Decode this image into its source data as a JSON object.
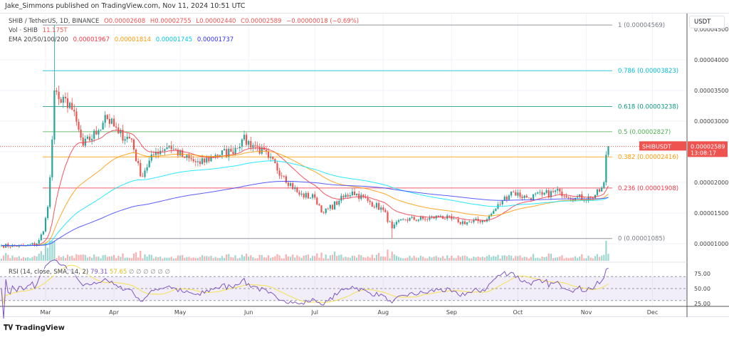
{
  "header": {
    "published": "Jake_Simmons published on TradingView.com, Nov 11, 2024 10:51 UTC"
  },
  "legend": {
    "symbol": "SHIB / TetherUS, 1D, BINANCE",
    "o": "O0.00002608",
    "h": "H0.00002755",
    "l": "L0.00002440",
    "c": "C0.00002589",
    "chg": "−0.00000018 (−0.69%)",
    "vol_label": "Vol · SHIB",
    "vol_value": "11.175T",
    "ema_label": "EMA 20/50/100/200",
    "ema20": "0.00001967",
    "ema50": "0.00001814",
    "ema100": "0.00001745",
    "ema200": "0.00001737"
  },
  "rsi_legend": {
    "label": "RSI (14, close, SMA, 14, 2)",
    "rsi": "79.31",
    "sma": "57.65",
    "placeholders": "∅ ∅ ∅ ∅ ∅ ∅"
  },
  "price_axis": {
    "currency": "USDT",
    "ticks": [
      "0.00004500",
      "0.00004000",
      "0.00003500",
      "0.00003000",
      "0.00002000",
      "0.00001500",
      "0.00001000"
    ]
  },
  "last_price": {
    "symbol": "SHIBUSDT",
    "price": "0.00002589",
    "countdown": "13:08:17"
  },
  "rsi_axis": {
    "ticks": [
      "75.00",
      "50.00",
      "25.00"
    ]
  },
  "time_axis": {
    "months": [
      "Mar",
      "Apr",
      "May",
      "Jun",
      "Jul",
      "Aug",
      "Sep",
      "Oct",
      "Nov",
      "Dec"
    ]
  },
  "fib_levels": [
    {
      "label": "1 (0.00004569)",
      "price": 4.569e-05,
      "color": "#787b86"
    },
    {
      "label": "0.786 (0.00003823)",
      "price": 3.823e-05,
      "color": "#00bcd4"
    },
    {
      "label": "0.618 (0.00003238)",
      "price": 3.238e-05,
      "color": "#089981"
    },
    {
      "label": "0.5 (0.00002827)",
      "price": 2.827e-05,
      "color": "#4caf50"
    },
    {
      "label": "0.382 (0.00002416)",
      "price": 2.416e-05,
      "color": "#ff9800"
    },
    {
      "label": "0.236 (0.00001908)",
      "price": 1.908e-05,
      "color": "#f23645"
    },
    {
      "label": "0 (0.00001085)",
      "price": 1.085e-05,
      "color": "#787b86"
    }
  ],
  "colors": {
    "up": "#26a69a",
    "down": "#ef5350",
    "ema20": "#f23645",
    "ema50": "#ff9800",
    "ema100": "#00e5ff",
    "ema200": "#3f3fff",
    "rsi": "#7e57c2",
    "rsi_sma": "#f5e050"
  },
  "chart_data": {
    "type": "candlestick",
    "title": "SHIB / TetherUS, 1D, BINANCE",
    "price_unit": "USDT",
    "ylim": [
      8.5e-06,
      4.57e-05
    ],
    "approx_closes": [
      [
        "2024-02-10",
        9.7e-06
      ],
      [
        "2024-02-20",
        9.6e-06
      ],
      [
        "2024-02-26",
        1e-05
      ],
      [
        "2024-02-29",
        1.2e-05
      ],
      [
        "2024-03-02",
        1.6e-05
      ],
      [
        "2024-03-04",
        2.7e-05
      ],
      [
        "2024-03-05",
        3.5e-05
      ],
      [
        "2024-03-08",
        3.3e-05
      ],
      [
        "2024-03-12",
        3.3e-05
      ],
      [
        "2024-03-18",
        2.6e-05
      ],
      [
        "2024-03-25",
        2.85e-05
      ],
      [
        "2024-03-28",
        3.1e-05
      ],
      [
        "2024-04-03",
        2.8e-05
      ],
      [
        "2024-04-09",
        2.7e-05
      ],
      [
        "2024-04-13",
        2.1e-05
      ],
      [
        "2024-04-20",
        2.5e-05
      ],
      [
        "2024-04-26",
        2.6e-05
      ],
      [
        "2024-05-03",
        2.4e-05
      ],
      [
        "2024-05-10",
        2.3e-05
      ],
      [
        "2024-05-17",
        2.45e-05
      ],
      [
        "2024-05-24",
        2.5e-05
      ],
      [
        "2024-05-29",
        2.7e-05
      ],
      [
        "2024-06-04",
        2.6e-05
      ],
      [
        "2024-06-10",
        2.4e-05
      ],
      [
        "2024-06-17",
        2.1e-05
      ],
      [
        "2024-06-24",
        1.8e-05
      ],
      [
        "2024-07-01",
        1.75e-05
      ],
      [
        "2024-07-05",
        1.5e-05
      ],
      [
        "2024-07-12",
        1.7e-05
      ],
      [
        "2024-07-18",
        1.85e-05
      ],
      [
        "2024-07-25",
        1.7e-05
      ],
      [
        "2024-08-01",
        1.55e-05
      ],
      [
        "2024-08-05",
        1.25e-05
      ],
      [
        "2024-08-10",
        1.4e-05
      ],
      [
        "2024-08-20",
        1.4e-05
      ],
      [
        "2024-08-27",
        1.45e-05
      ],
      [
        "2024-09-04",
        1.35e-05
      ],
      [
        "2024-09-10",
        1.35e-05
      ],
      [
        "2024-09-17",
        1.4e-05
      ],
      [
        "2024-09-24",
        1.7e-05
      ],
      [
        "2024-09-28",
        1.85e-05
      ],
      [
        "2024-10-05",
        1.75e-05
      ],
      [
        "2024-10-12",
        1.8e-05
      ],
      [
        "2024-10-20",
        1.85e-05
      ],
      [
        "2024-10-27",
        1.75e-05
      ],
      [
        "2024-11-03",
        1.75e-05
      ],
      [
        "2024-11-07",
        1.85e-05
      ],
      [
        "2024-11-09",
        2e-05
      ],
      [
        "2024-11-10",
        2.45e-05
      ],
      [
        "2024-11-11",
        2.589e-05
      ]
    ],
    "extremes": {
      "high": [
        "2024-03-05",
        4.569e-05
      ],
      "low": [
        "2024-08-05",
        1.085e-05
      ]
    },
    "indicators": [
      "EMA 20",
      "EMA 50",
      "EMA 100",
      "EMA 200",
      "Volume",
      "RSI 14 with SMA 14"
    ],
    "rsi_bands": [
      70,
      50,
      30
    ]
  }
}
